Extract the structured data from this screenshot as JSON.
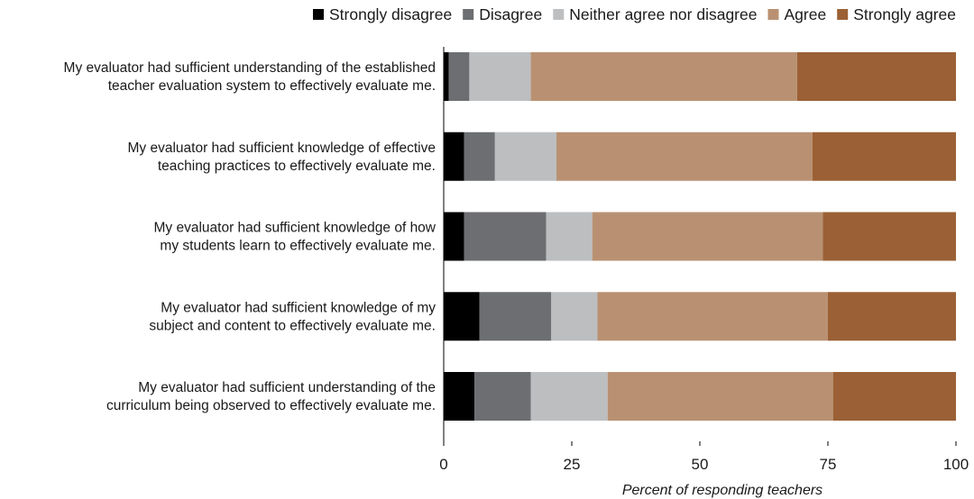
{
  "chart_data": {
    "type": "bar",
    "orientation": "horizontal",
    "stacked": true,
    "title": "",
    "xlabel": "Percent of responding teachers",
    "ylabel": "",
    "xlim": [
      0,
      100
    ],
    "xticks": [
      "0",
      "25",
      "50",
      "75",
      "100"
    ],
    "grid": false,
    "legend_position": "top",
    "categories": [
      [
        "My evaluator had sufficient understanding of the established",
        "teacher evaluation system to effectively evaluate me."
      ],
      [
        "My evaluator had sufficient knowledge of effective",
        "teaching practices to effectively evaluate me."
      ],
      [
        "My evaluator had sufficient knowledge of how",
        "my students learn to effectively evaluate me."
      ],
      [
        "My evaluator had sufficient knowledge of my",
        "subject and content to effectively evaluate me."
      ],
      [
        "My evaluator had sufficient understanding of the",
        "curriculum being observed to effectively evaluate me."
      ]
    ],
    "series": [
      {
        "name": "Strongly disagree",
        "color": "#000000",
        "values": [
          1,
          4,
          4,
          7,
          6
        ]
      },
      {
        "name": "Disagree",
        "color": "#6d6e71",
        "values": [
          4,
          6,
          16,
          14,
          11
        ]
      },
      {
        "name": "Neither agree nor disagree",
        "color": "#bcbec0",
        "values": [
          12,
          12,
          9,
          9,
          15
        ]
      },
      {
        "name": "Agree",
        "color": "#b99172",
        "values": [
          52,
          50,
          45,
          45,
          44
        ]
      },
      {
        "name": "Strongly agree",
        "color": "#9b6035",
        "values": [
          31,
          28,
          26,
          25,
          24
        ]
      }
    ]
  }
}
